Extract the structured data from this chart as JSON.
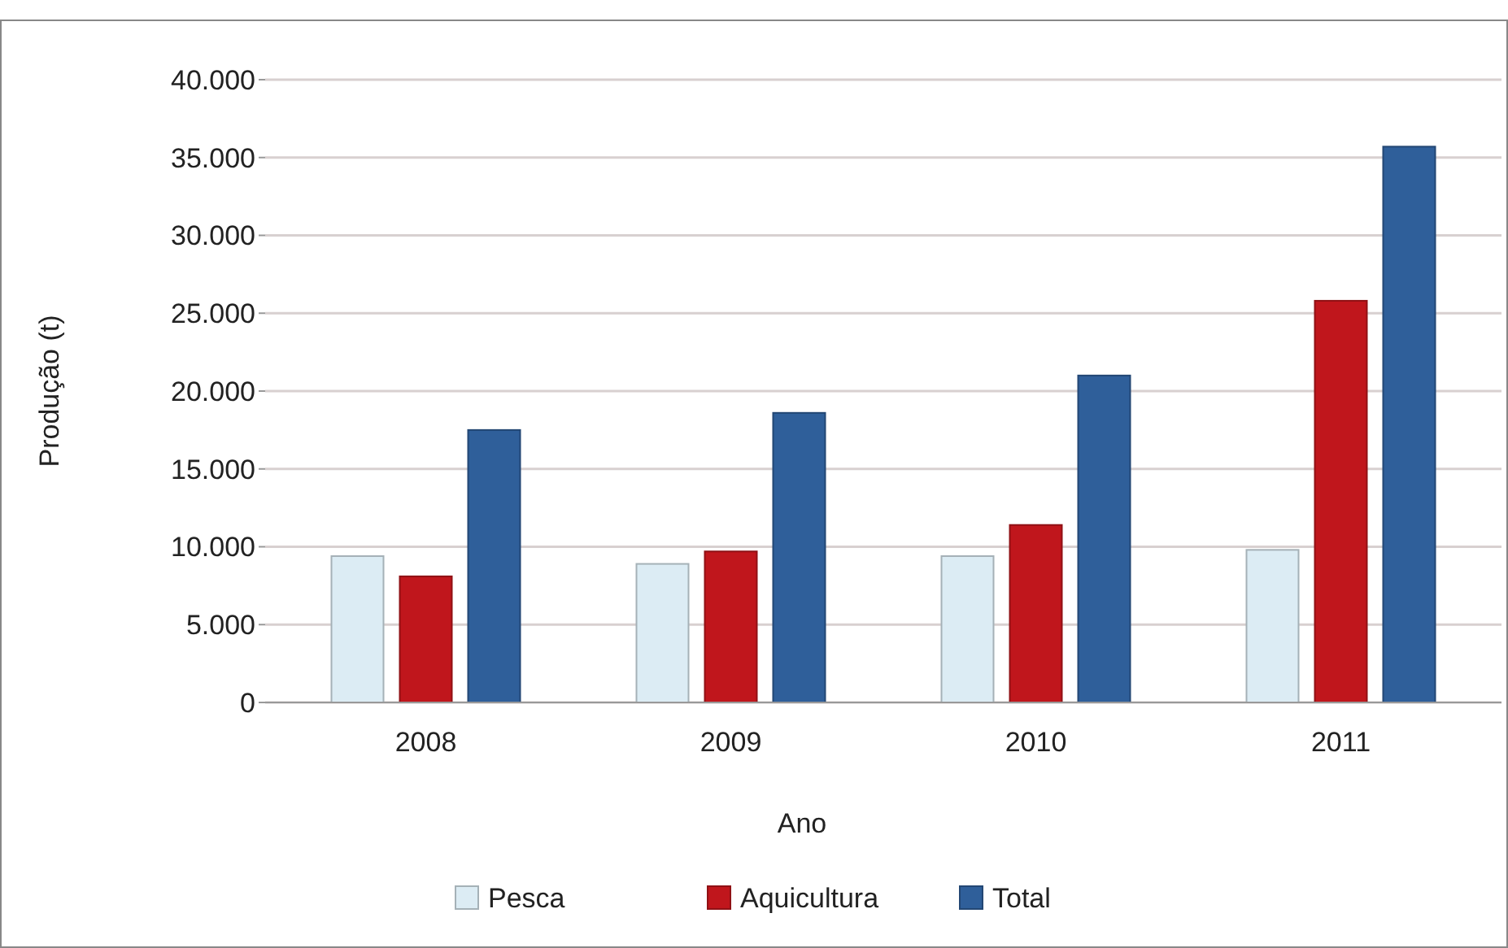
{
  "chart_data": {
    "type": "bar",
    "xlabel": "Ano",
    "ylabel": "Produção (t)",
    "categories": [
      "2008",
      "2009",
      "2010",
      "2011"
    ],
    "series": [
      {
        "name": "Pesca",
        "color": "#dcecf4",
        "values": [
          9400,
          8900,
          9400,
          9800
        ]
      },
      {
        "name": "Aquicultura",
        "color": "#c0161c",
        "values": [
          8100,
          9700,
          11400,
          25800
        ]
      },
      {
        "name": "Total",
        "color": "#2f5f9a",
        "values": [
          17500,
          18600,
          21000,
          35700
        ]
      }
    ],
    "ylim": [
      0,
      40000
    ],
    "yticks": [
      0,
      {
        "value": 5000,
        "label": "5.000"
      },
      {
        "value": 10000,
        "label": "10.000"
      },
      {
        "value": 15000,
        "label": "15.000"
      },
      {
        "value": 20000,
        "label": "20.000"
      },
      {
        "value": 25000,
        "label": "25.000"
      },
      {
        "value": 30000,
        "label": "30.000"
      },
      {
        "value": 35000,
        "label": "35.000"
      },
      {
        "value": 40000,
        "label": "40.000"
      }
    ],
    "grid": "y",
    "legend": "bottom"
  }
}
